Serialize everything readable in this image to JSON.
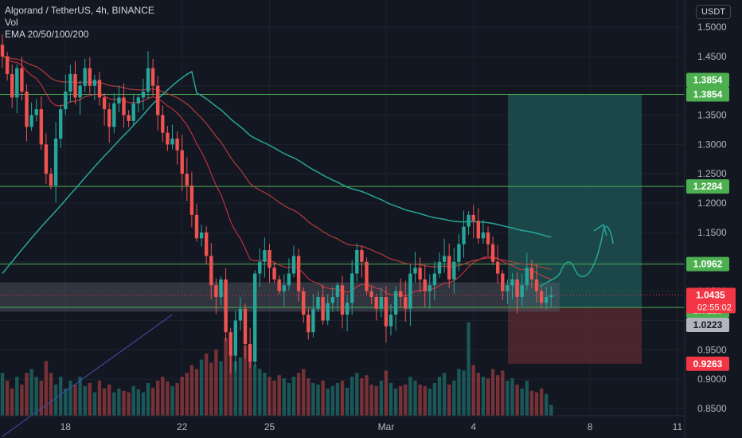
{
  "header": {
    "title": "Algorand / TetherUS, 4h, BINANCE",
    "volume_label": "Vol",
    "ema_label": "EMA 20/50/100/200",
    "currency_button": "USDT"
  },
  "colors": {
    "background": "#131722",
    "up": "#26a69a",
    "down": "#ef5350",
    "level_line": "#4caf50",
    "level_tag": "#4caf50",
    "stop_tag": "#f23645",
    "price_tag": "#f23645",
    "ema20": "#f23645",
    "ema50": "#ef5350",
    "ema100": "#26a69a",
    "ema200": "#3f51b5",
    "target_zone": "#1f5d5a",
    "stop_zone": "#5c2b33",
    "support_zone": "#565a66",
    "arrow": "#26a69a"
  },
  "chart_data": {
    "type": "candlestick",
    "symbol": "Algorand / TetherUS",
    "interval": "4h",
    "exchange": "BINANCE",
    "y_axis": {
      "ylim": [
        0.84,
        1.54
      ],
      "ticks": [
        "1.5000",
        "1.4500",
        "1.4000",
        "1.3500",
        "1.3000",
        "1.2500",
        "1.2000",
        "1.1500",
        "1.1000",
        "1.0500",
        "1.0000",
        "0.9500",
        "0.9000",
        "0.8500"
      ]
    },
    "x_axis": {
      "labels": [
        {
          "label": "18",
          "index": 13
        },
        {
          "label": "22",
          "index": 37
        },
        {
          "label": "25",
          "index": 55
        },
        {
          "label": "Mar",
          "index": 79
        },
        {
          "label": "4",
          "index": 97
        },
        {
          "label": "8",
          "index": 121
        },
        {
          "label": "11",
          "index": 139
        }
      ],
      "total_slots": 150
    },
    "closes": [
      1.45,
      1.42,
      1.38,
      1.43,
      1.39,
      1.33,
      1.35,
      1.36,
      1.3,
      1.25,
      1.23,
      1.31,
      1.36,
      1.39,
      1.42,
      1.38,
      1.4,
      1.43,
      1.4,
      1.41,
      1.38,
      1.36,
      1.33,
      1.37,
      1.38,
      1.35,
      1.34,
      1.37,
      1.38,
      1.39,
      1.43,
      1.4,
      1.35,
      1.32,
      1.3,
      1.31,
      1.29,
      1.25,
      1.23,
      1.18,
      1.14,
      1.15,
      1.11,
      1.06,
      1.04,
      1.07,
      0.98,
      0.94,
      1.0,
      1.02,
      0.96,
      0.93,
      1.08,
      1.1,
      1.12,
      1.09,
      1.07,
      1.05,
      1.06,
      1.08,
      1.11,
      1.05,
      1.01,
      0.98,
      1.02,
      1.04,
      1.0,
      1.03,
      1.04,
      1.06,
      1.01,
      1.03,
      1.08,
      1.12,
      1.1,
      1.05,
      1.04,
      1.02,
      1.04,
      0.99,
      1.01,
      1.05,
      1.04,
      1.02,
      1.08,
      1.09,
      1.07,
      1.05,
      1.06,
      1.08,
      1.1,
      1.11,
      1.07,
      1.1,
      1.13,
      1.16,
      1.18,
      1.17,
      1.14,
      1.15,
      1.13,
      1.1,
      1.08,
      1.05,
      1.06,
      1.07,
      1.04,
      1.06,
      1.09,
      1.07,
      1.05,
      1.03,
      1.04,
      1.0435
    ],
    "volumes": [
      0.55,
      0.45,
      0.35,
      0.5,
      0.4,
      0.55,
      0.6,
      0.5,
      0.45,
      0.7,
      0.55,
      0.4,
      0.5,
      0.35,
      0.45,
      0.4,
      0.5,
      0.38,
      0.42,
      0.3,
      0.45,
      0.35,
      0.4,
      0.3,
      0.35,
      0.32,
      0.3,
      0.38,
      0.34,
      0.3,
      0.42,
      0.36,
      0.45,
      0.5,
      0.44,
      0.38,
      0.42,
      0.5,
      0.55,
      0.65,
      0.6,
      0.72,
      0.8,
      0.68,
      0.85,
      0.7,
      1.0,
      0.8,
      0.7,
      0.75,
      0.9,
      0.72,
      0.65,
      0.6,
      0.55,
      0.5,
      0.45,
      0.52,
      0.48,
      0.42,
      0.5,
      0.55,
      0.6,
      0.48,
      0.42,
      0.4,
      0.45,
      0.35,
      0.38,
      0.42,
      0.45,
      0.36,
      0.5,
      0.55,
      0.48,
      0.52,
      0.4,
      0.38,
      0.45,
      0.58,
      0.42,
      0.35,
      0.38,
      0.4,
      0.5,
      0.45,
      0.4,
      0.38,
      0.35,
      0.42,
      0.5,
      0.55,
      0.4,
      0.45,
      0.6,
      0.58,
      1.2,
      0.65,
      0.55,
      0.5,
      0.48,
      0.6,
      0.52,
      0.58,
      0.45,
      0.48,
      0.4,
      0.35,
      0.45,
      0.32,
      0.3,
      0.35,
      0.28,
      0.14
    ],
    "ema_labels": [
      "EMA 20",
      "EMA 50",
      "EMA 100",
      "EMA 200"
    ],
    "levels": [
      {
        "price": 1.3854,
        "label": "1.3854",
        "role": "target"
      },
      {
        "price": 1.2284,
        "label": "1.2284",
        "role": "resistance"
      },
      {
        "price": 1.0962,
        "label": "1.0962",
        "role": "resistance"
      },
      {
        "price": 1.0223,
        "label": "1.0223",
        "role": "entry"
      }
    ],
    "stop_price": 0.9263,
    "stop_label": "0.9263",
    "current_price": 1.0435,
    "current_label": "1.0435",
    "countdown": "02:55:02",
    "extra_tags": [
      {
        "price": 1.3854,
        "label": "1.3854",
        "style": "outline"
      },
      {
        "price": 1.0223,
        "label": "1.0223",
        "style": "gray"
      }
    ],
    "support_zone": [
      1.015,
      1.065
    ]
  }
}
